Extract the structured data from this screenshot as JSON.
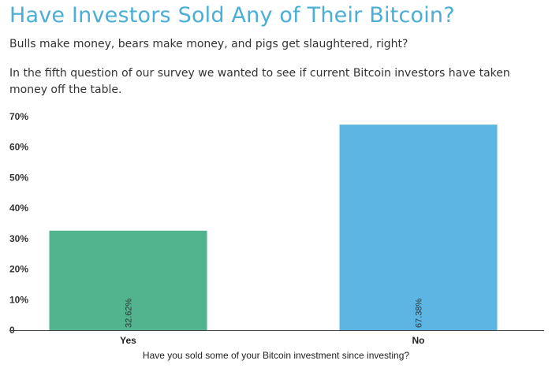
{
  "page": {
    "title": "Have Investors Sold Any of Their Bitcoin?",
    "paragraph1": "Bulls make money, bears make money, and pigs get slaughtered, right?",
    "paragraph2": "In the fifth question of our survey we wanted to see if current Bitcoin investors have taken money off the table."
  },
  "colors": {
    "title": "#4aaed6",
    "yes_bar": "#52b38f",
    "no_bar": "#5db5e3"
  },
  "chart_data": {
    "type": "bar",
    "categories": [
      "Yes",
      "No"
    ],
    "values": [
      32.62,
      67.38
    ],
    "data_labels": [
      "32.62%",
      "67.38%"
    ],
    "title": "",
    "xlabel": "Have you sold some of your Bitcoin investment since investing?",
    "ylabel": "",
    "ylim": [
      0,
      70
    ],
    "yticks": [
      0,
      10,
      20,
      30,
      40,
      50,
      60,
      70
    ],
    "ytick_labels": [
      "0",
      "10%",
      "20%",
      "30%",
      "40%",
      "50%",
      "60%",
      "70%"
    ],
    "grid": false,
    "legend": "none"
  }
}
